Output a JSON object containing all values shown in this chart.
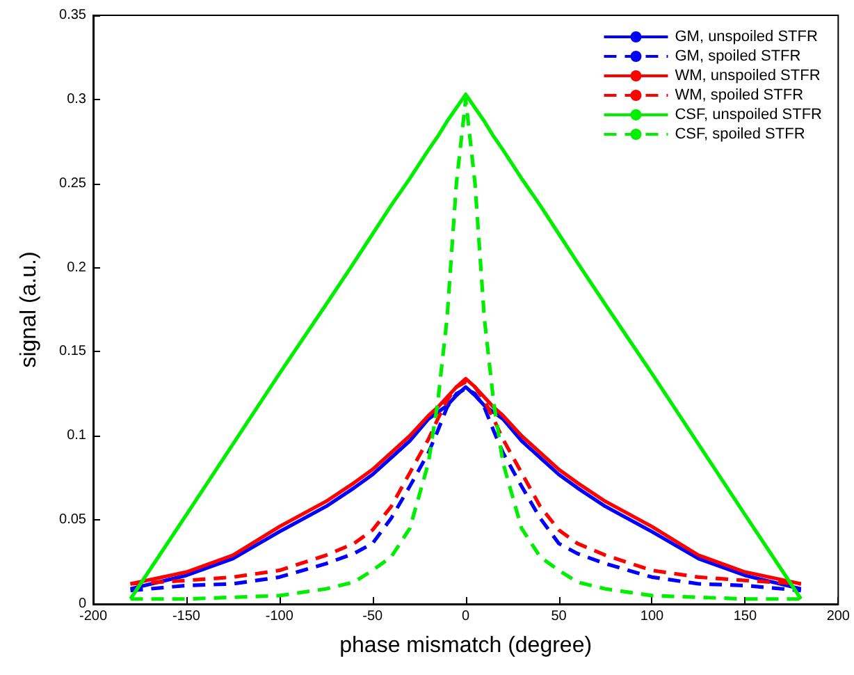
{
  "chart_data": {
    "type": "line",
    "xlabel": "phase mismatch (degree)",
    "ylabel": "signal (a.u.)",
    "xlim": [
      -200,
      200
    ],
    "xticks": [
      -200,
      -150,
      -100,
      -50,
      0,
      50,
      100,
      150,
      200
    ],
    "ylim": [
      0,
      0.35
    ],
    "yticks": [
      0,
      0.05,
      0.1,
      0.15,
      0.2,
      0.25,
      0.3,
      0.35
    ],
    "grid": false,
    "legend": "top right",
    "marker": "none",
    "x": [
      -180,
      -150,
      -125,
      -100,
      -75,
      -60,
      -50,
      -40,
      -30,
      -20,
      -15,
      -10,
      -5,
      0,
      5,
      10,
      15,
      20,
      30,
      40,
      50,
      60,
      75,
      100,
      125,
      150,
      180
    ],
    "series": [
      {
        "name": "GM, unspoiled STFR",
        "color": "#0000ff",
        "line_style": "solid",
        "values": [
          0.009,
          0.017,
          0.027,
          0.043,
          0.058,
          0.069,
          0.077,
          0.087,
          0.097,
          0.11,
          0.114,
          0.118,
          0.124,
          0.129,
          0.124,
          0.118,
          0.114,
          0.11,
          0.097,
          0.087,
          0.077,
          0.069,
          0.058,
          0.043,
          0.027,
          0.017,
          0.009
        ]
      },
      {
        "name": "GM, spoiled STFR",
        "color": "#0000ff",
        "line_style": "dashed",
        "values": [
          0.008,
          0.011,
          0.012,
          0.016,
          0.024,
          0.03,
          0.036,
          0.051,
          0.07,
          0.09,
          0.103,
          0.117,
          0.125,
          0.128,
          0.125,
          0.117,
          0.103,
          0.09,
          0.07,
          0.051,
          0.036,
          0.03,
          0.024,
          0.016,
          0.012,
          0.011,
          0.008
        ]
      },
      {
        "name": "WM, unspoiled STFR",
        "color": "#ff0000",
        "line_style": "solid",
        "values": [
          0.012,
          0.019,
          0.029,
          0.046,
          0.061,
          0.072,
          0.08,
          0.09,
          0.1,
          0.112,
          0.117,
          0.123,
          0.129,
          0.134,
          0.129,
          0.123,
          0.117,
          0.112,
          0.1,
          0.09,
          0.08,
          0.072,
          0.061,
          0.046,
          0.029,
          0.019,
          0.012
        ]
      },
      {
        "name": "WM, spoiled STFR",
        "color": "#ff0000",
        "line_style": "dashed",
        "values": [
          0.012,
          0.014,
          0.016,
          0.02,
          0.029,
          0.036,
          0.044,
          0.058,
          0.078,
          0.098,
          0.11,
          0.121,
          0.129,
          0.132,
          0.129,
          0.121,
          0.11,
          0.098,
          0.078,
          0.058,
          0.044,
          0.036,
          0.029,
          0.02,
          0.016,
          0.014,
          0.012
        ]
      },
      {
        "name": "CSF, unspoiled STFR",
        "color": "#00ee00",
        "line_style": "solid",
        "values": [
          0.003,
          0.053,
          0.095,
          0.137,
          0.178,
          0.203,
          0.22,
          0.237,
          0.253,
          0.27,
          0.278,
          0.287,
          0.295,
          0.303,
          0.295,
          0.287,
          0.278,
          0.27,
          0.253,
          0.237,
          0.22,
          0.203,
          0.178,
          0.137,
          0.095,
          0.053,
          0.003
        ]
      },
      {
        "name": "CSF, spoiled STFR",
        "color": "#00ee00",
        "line_style": "dashed",
        "values": [
          0.003,
          0.003,
          0.004,
          0.005,
          0.009,
          0.013,
          0.02,
          0.028,
          0.045,
          0.084,
          0.12,
          0.17,
          0.25,
          0.3,
          0.25,
          0.17,
          0.12,
          0.084,
          0.045,
          0.028,
          0.02,
          0.013,
          0.009,
          0.005,
          0.004,
          0.003,
          0.003
        ]
      }
    ]
  }
}
